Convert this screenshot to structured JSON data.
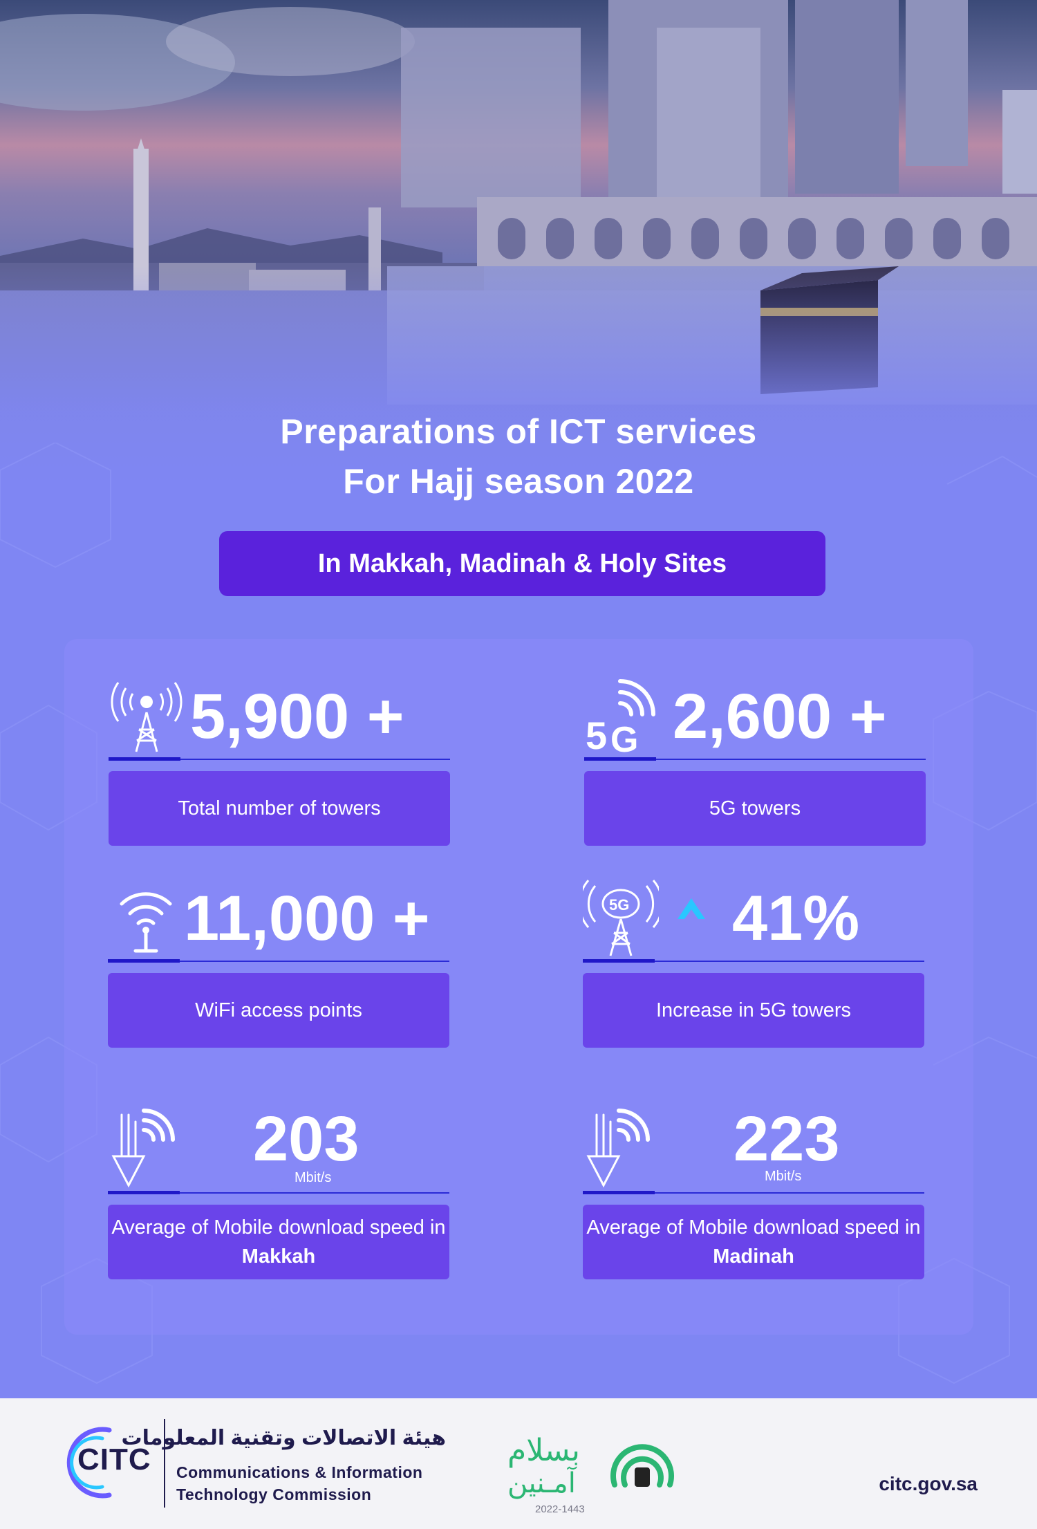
{
  "header": {
    "title_line1": "Preparations of ICT services",
    "title_line2": "For Hajj season 2022",
    "locations": "In Makkah, Madinah & Holy Sites"
  },
  "stats": [
    {
      "icon": "cell-tower-icon",
      "value": "5,900 +",
      "label": "Total number of towers"
    },
    {
      "icon": "5g-signal-icon",
      "value": "2,600 +",
      "label": "5G towers"
    },
    {
      "icon": "wifi-access-point-icon",
      "value": "11,000 +",
      "label": "WiFi access points"
    },
    {
      "icon": "5g-tower-icon",
      "value": "41%",
      "label": "Increase in  5G towers",
      "trend_icon": "arrow-up-icon"
    },
    {
      "icon": "download-speed-icon",
      "value": "203",
      "unit": "Mbit/s",
      "label_prefix": "Average of Mobile download speed in ",
      "label_city": "Makkah"
    },
    {
      "icon": "download-speed-icon",
      "value": "223",
      "unit": "Mbit/s",
      "label_prefix": "Average of Mobile download speed in ",
      "label_city": "Madinah"
    }
  ],
  "footer": {
    "org_abbr": "CITC",
    "org_name_ar": "هيئة الاتصالات وتقنية المعلومات",
    "org_name_en_line1": "Communications & Information",
    "org_name_en_line2": "Technology Commission",
    "campaign_ar_line1": "بسلام",
    "campaign_ar_line2": "آمـنين",
    "campaign_years": "2022-1443",
    "website": "citc.gov.sa"
  },
  "colors": {
    "background": "#7f86f3",
    "pill": "#5a22dc",
    "label_box": "#6a44ea",
    "accent_arrow": "#29c7ff",
    "footer_text": "#1f1b4d",
    "campaign_green": "#2bb673"
  }
}
